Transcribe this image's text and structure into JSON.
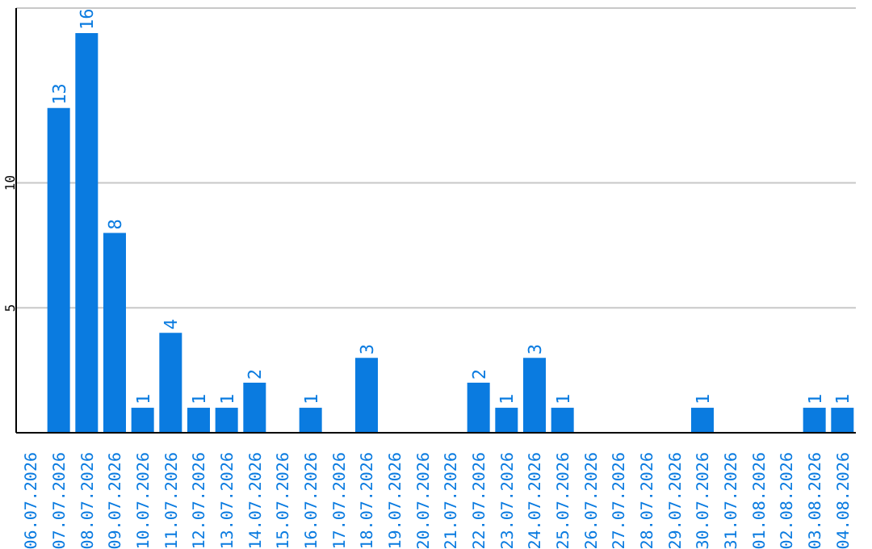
{
  "chart_data": {
    "type": "bar",
    "categories": [
      "06.07.2026",
      "07.07.2026",
      "08.07.2026",
      "09.07.2026",
      "10.07.2026",
      "11.07.2026",
      "12.07.2026",
      "13.07.2026",
      "14.07.2026",
      "15.07.2026",
      "16.07.2026",
      "17.07.2026",
      "18.07.2026",
      "19.07.2026",
      "20.07.2026",
      "21.07.2026",
      "22.07.2026",
      "23.07.2026",
      "24.07.2026",
      "25.07.2026",
      "26.07.2026",
      "27.07.2026",
      "28.07.2026",
      "29.07.2026",
      "30.07.2026",
      "31.07.2026",
      "01.08.2026",
      "02.08.2026",
      "03.08.2026",
      "04.08.2026"
    ],
    "values": [
      0,
      13,
      16,
      8,
      1,
      4,
      1,
      1,
      2,
      0,
      1,
      0,
      3,
      0,
      0,
      0,
      2,
      1,
      3,
      1,
      0,
      0,
      0,
      0,
      1,
      0,
      0,
      0,
      1,
      1
    ],
    "value_labels": [
      null,
      "13",
      "16",
      "8",
      "1",
      "4",
      "1",
      "1",
      "2",
      null,
      "1",
      null,
      "3",
      null,
      null,
      null,
      "2",
      "1",
      "3",
      "1",
      null,
      null,
      null,
      null,
      "1",
      null,
      null,
      null,
      "1",
      "1"
    ],
    "color": "#0a7be0",
    "ylim": [
      0,
      17
    ],
    "yticks": [
      5,
      10
    ],
    "grid": "y"
  }
}
